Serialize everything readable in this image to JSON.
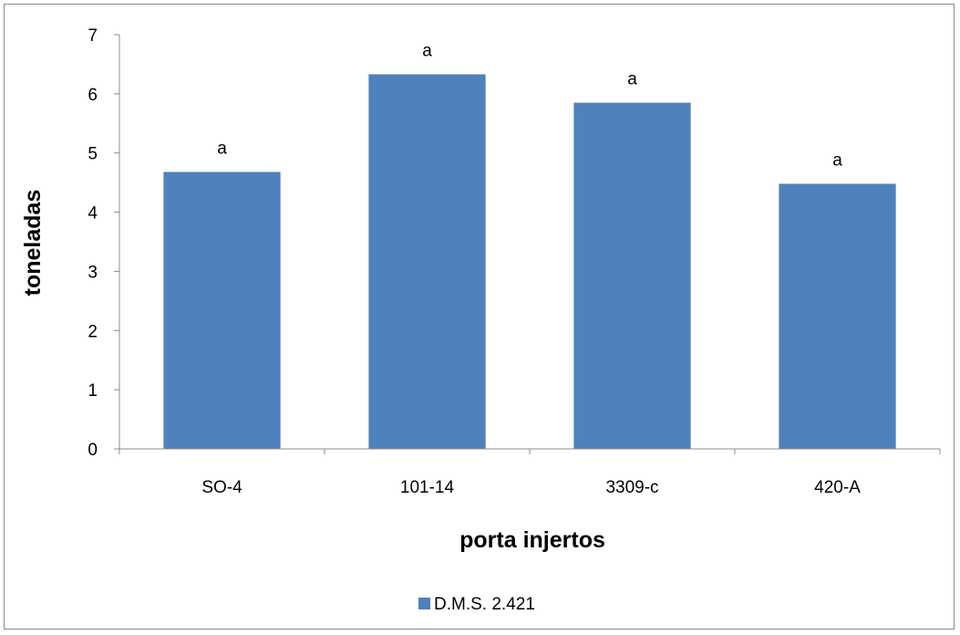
{
  "chart_data": {
    "type": "bar",
    "categories": [
      "SO-4",
      "101-14",
      "3309-c",
      "420-A"
    ],
    "series": [
      {
        "name": "D.M.S. 2.421",
        "values": [
          4.68,
          6.33,
          5.85,
          4.48
        ],
        "labels": [
          "a",
          "a",
          "a",
          "a"
        ],
        "color": "#4f81bd"
      }
    ],
    "xlabel": "porta injertos",
    "ylabel": "toneladas",
    "ylim": [
      0,
      7
    ],
    "yticks": [
      "0",
      "1",
      "2",
      "3",
      "4",
      "5",
      "6",
      "7"
    ],
    "grid": false,
    "legend": "bottom"
  }
}
